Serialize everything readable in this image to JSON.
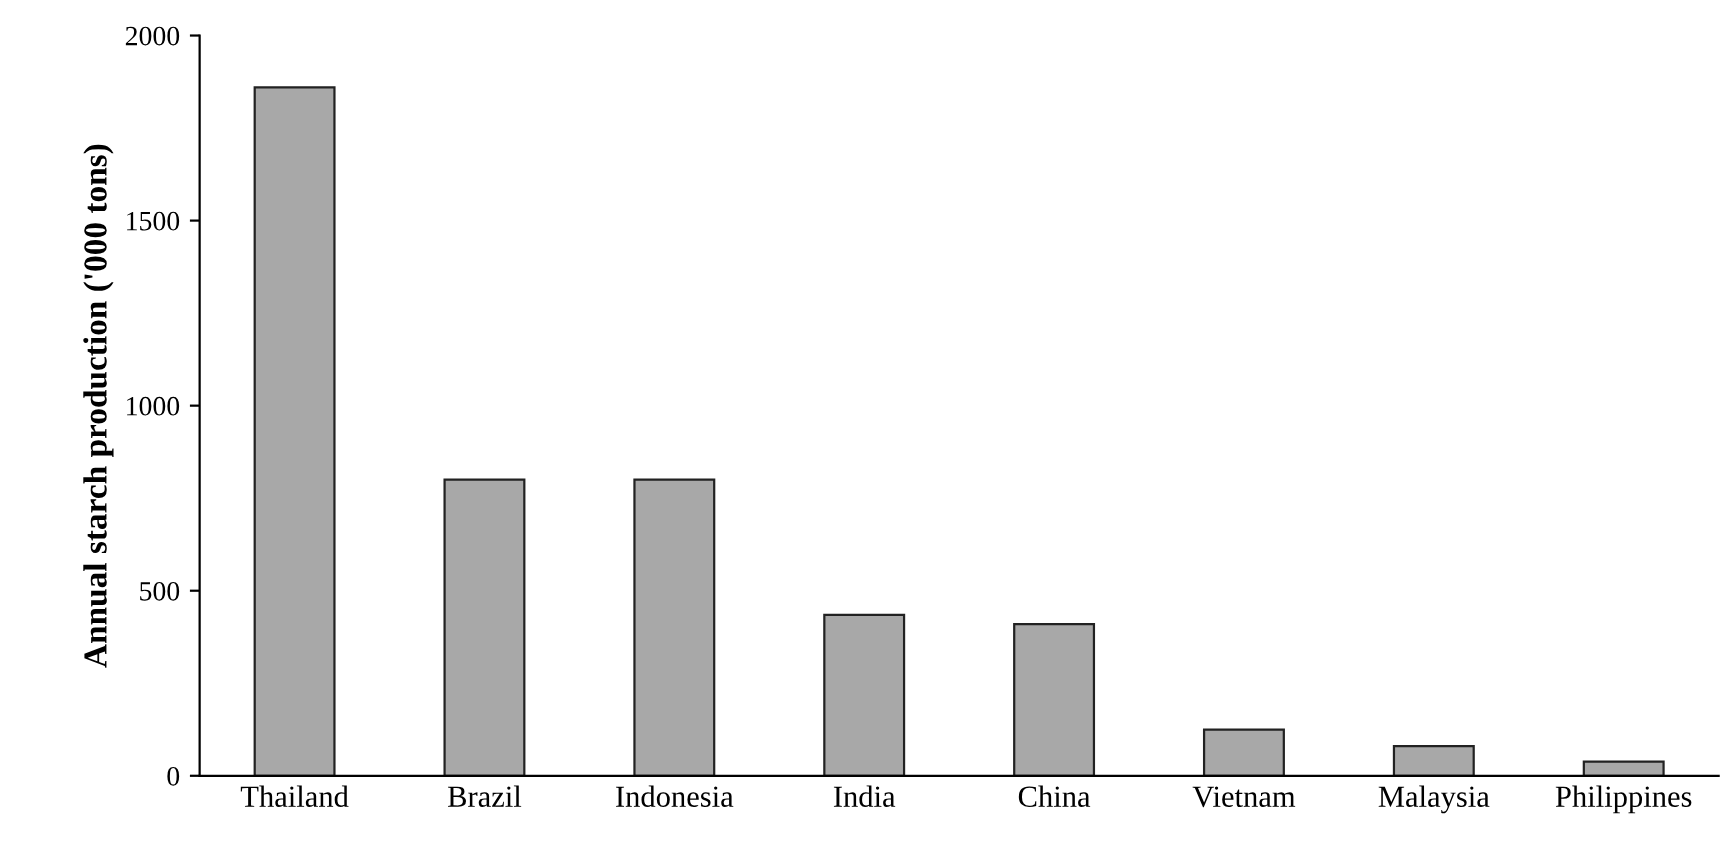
{
  "chart_data": {
    "type": "bar",
    "ylabel": "Annual starch production ('000 tons)",
    "categories": [
      "Thailand",
      "Brazil",
      "Indonesia",
      "India",
      "China",
      "Vietnam",
      "Malaysia",
      "Philippines"
    ],
    "values": [
      1860,
      800,
      800,
      435,
      410,
      125,
      80,
      38
    ],
    "color": "#a8a8a8",
    "ylim": [
      0,
      2000
    ],
    "yticks": [
      0,
      500,
      1000,
      1500,
      2000
    ],
    "grid": false
  }
}
